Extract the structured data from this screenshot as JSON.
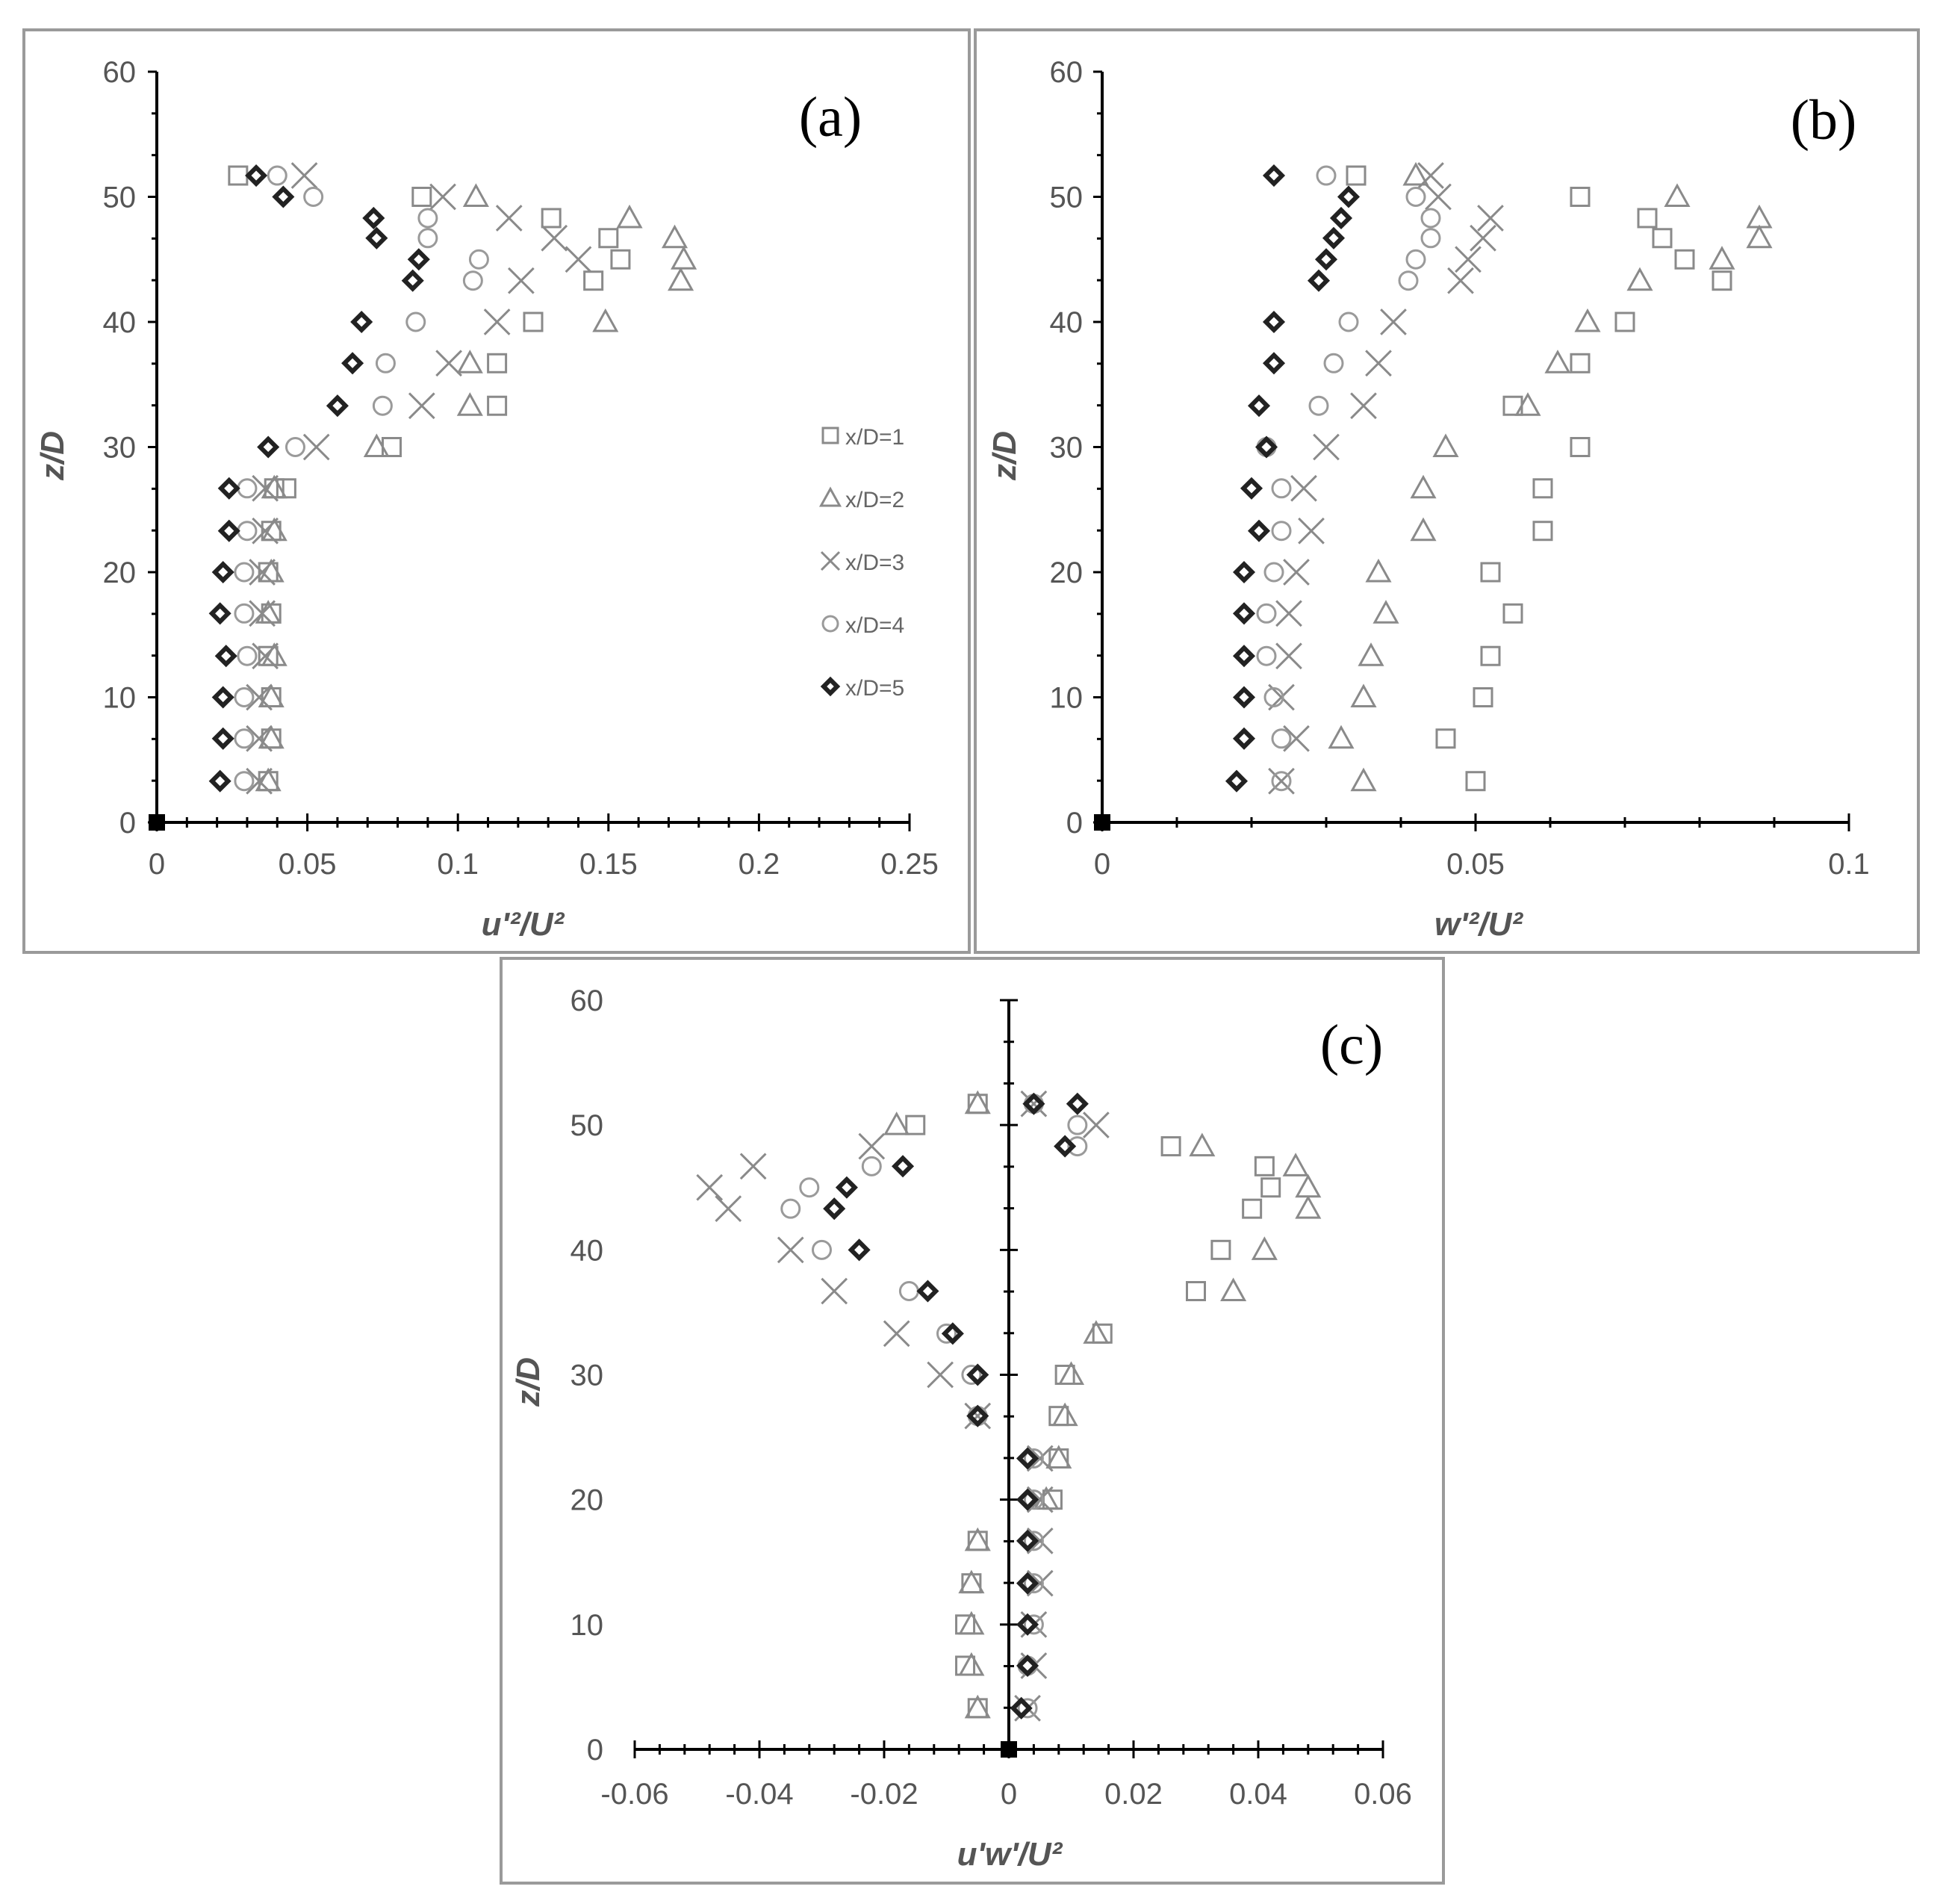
{
  "colors": {
    "frame": "#9a9a9a",
    "axis": "#000000",
    "text": "#555555",
    "series": [
      "#8a8a8a",
      "#8a8a8a",
      "#8a8a8a",
      "#9a9a9a",
      "#222222"
    ]
  },
  "legend": {
    "placement": "right-middle of panel (a)",
    "entries": [
      {
        "label": "x/D=1",
        "marker": "square-icon"
      },
      {
        "label": "x/D=2",
        "marker": "triangle-icon"
      },
      {
        "label": "x/D=3",
        "marker": "cross-icon"
      },
      {
        "label": "x/D=4",
        "marker": "circle-icon"
      },
      {
        "label": "x/D=5",
        "marker": "diamond-icon"
      }
    ]
  },
  "chart_data": [
    {
      "type": "scatter",
      "panel_label": "(a)",
      "xlabel": "u'²/U²",
      "ylabel": "z/D",
      "xlim": [
        0,
        0.25
      ],
      "ylim": [
        0,
        60
      ],
      "x_ticks": [
        "0",
        "0.05",
        "0.1",
        "0.15",
        "0.2",
        "0.25"
      ],
      "y_ticks": [
        "0",
        "10",
        "20",
        "30",
        "40",
        "50",
        "60"
      ],
      "grid": false,
      "series": [
        {
          "name": "x/D=1",
          "marker": "square",
          "x": [
            0.037,
            0.038,
            0.038,
            0.037,
            0.038,
            0.037,
            0.038,
            0.039,
            0.043,
            0.078,
            0.113,
            0.113,
            0.125,
            0.145,
            0.154,
            0.15,
            0.131,
            0.088,
            0.027
          ],
          "y": [
            3.3,
            6.7,
            10,
            13.3,
            16.7,
            20,
            23.3,
            26.7,
            26.7,
            30,
            33.3,
            36.7,
            40,
            43.3,
            45,
            46.7,
            48.3,
            50,
            51.7
          ]
        },
        {
          "name": "x/D=2",
          "marker": "triangle",
          "x": [
            0.037,
            0.038,
            0.038,
            0.039,
            0.037,
            0.038,
            0.039,
            0.039,
            0.073,
            0.104,
            0.104,
            0.149,
            0.174,
            0.175,
            0.172,
            0.157,
            0.106
          ],
          "y": [
            3.3,
            6.7,
            10,
            13.3,
            16.7,
            20,
            23.3,
            26.7,
            30,
            33.3,
            36.7,
            40,
            43.3,
            45,
            46.7,
            48.3,
            50
          ]
        },
        {
          "name": "x/D=3",
          "marker": "cross",
          "x": [
            0.034,
            0.034,
            0.034,
            0.036,
            0.035,
            0.035,
            0.036,
            0.036,
            0.053,
            0.088,
            0.097,
            0.113,
            0.121,
            0.14,
            0.132,
            0.117,
            0.095,
            0.049
          ],
          "y": [
            3.3,
            6.7,
            10,
            13.3,
            16.7,
            20,
            23.3,
            26.7,
            30,
            33.3,
            36.7,
            40,
            43.3,
            45,
            46.7,
            48.3,
            50,
            51.7
          ]
        },
        {
          "name": "x/D=4",
          "marker": "circle",
          "x": [
            0.029,
            0.029,
            0.029,
            0.03,
            0.029,
            0.029,
            0.03,
            0.03,
            0.046,
            0.075,
            0.076,
            0.086,
            0.105,
            0.107,
            0.09,
            0.09,
            0.052,
            0.04
          ],
          "y": [
            3.3,
            6.7,
            10,
            13.3,
            16.7,
            20,
            23.3,
            26.7,
            30,
            33.3,
            36.7,
            40,
            43.3,
            45,
            46.7,
            48.3,
            50,
            51.7
          ]
        },
        {
          "name": "x/D=5",
          "marker": "diamond",
          "x": [
            0.021,
            0.022,
            0.022,
            0.023,
            0.021,
            0.022,
            0.024,
            0.024,
            0.037,
            0.06,
            0.065,
            0.068,
            0.085,
            0.087,
            0.073,
            0.072,
            0.042,
            0.033
          ],
          "y": [
            3.3,
            6.7,
            10,
            13.3,
            16.7,
            20,
            23.3,
            26.7,
            30,
            33.3,
            36.7,
            40,
            43.3,
            45,
            46.7,
            48.3,
            50,
            51.7
          ]
        }
      ]
    },
    {
      "type": "scatter",
      "panel_label": "(b)",
      "xlabel": "w'²/U²",
      "ylabel": "z/D",
      "xlim": [
        0,
        0.1
      ],
      "ylim": [
        0,
        60
      ],
      "x_ticks": [
        "0",
        "0.05",
        "0.1"
      ],
      "y_ticks": [
        "0",
        "10",
        "20",
        "30",
        "40",
        "50",
        "60"
      ],
      "grid": false,
      "series": [
        {
          "name": "x/D=1",
          "marker": "square",
          "x": [
            0.05,
            0.046,
            0.051,
            0.052,
            0.055,
            0.052,
            0.059,
            0.059,
            0.064,
            0.055,
            0.064,
            0.07,
            0.083,
            0.078,
            0.075,
            0.073,
            0.064,
            0.034
          ],
          "y": [
            3.3,
            6.7,
            10,
            13.3,
            16.7,
            20,
            23.3,
            26.7,
            30,
            33.3,
            36.7,
            40,
            43.3,
            45,
            46.7,
            48.3,
            50,
            51.7
          ]
        },
        {
          "name": "x/D=2",
          "marker": "triangle",
          "x": [
            0.035,
            0.032,
            0.035,
            0.036,
            0.038,
            0.037,
            0.043,
            0.043,
            0.046,
            0.057,
            0.061,
            0.065,
            0.072,
            0.083,
            0.088,
            0.088,
            0.077,
            0.042
          ],
          "y": [
            3.3,
            6.7,
            10,
            13.3,
            16.7,
            20,
            23.3,
            26.7,
            30,
            33.3,
            36.7,
            40,
            43.3,
            45,
            46.7,
            48.3,
            50,
            51.7
          ]
        },
        {
          "name": "x/D=3",
          "marker": "cross",
          "x": [
            0.024,
            0.026,
            0.024,
            0.025,
            0.025,
            0.026,
            0.028,
            0.027,
            0.03,
            0.035,
            0.037,
            0.039,
            0.048,
            0.049,
            0.051,
            0.052,
            0.045,
            0.044
          ],
          "y": [
            3.3,
            6.7,
            10,
            13.3,
            16.7,
            20,
            23.3,
            26.7,
            30,
            33.3,
            36.7,
            40,
            43.3,
            45,
            46.7,
            48.3,
            50,
            51.7
          ]
        },
        {
          "name": "x/D=4",
          "marker": "circle",
          "x": [
            0.024,
            0.024,
            0.023,
            0.022,
            0.022,
            0.023,
            0.024,
            0.024,
            0.022,
            0.029,
            0.031,
            0.033,
            0.041,
            0.042,
            0.044,
            0.044,
            0.042,
            0.03
          ],
          "y": [
            3.3,
            6.7,
            10,
            13.3,
            16.7,
            20,
            23.3,
            26.7,
            30,
            33.3,
            36.7,
            40,
            43.3,
            45,
            46.7,
            48.3,
            50,
            51.7
          ]
        },
        {
          "name": "x/D=5",
          "marker": "diamond",
          "x": [
            0.018,
            0.019,
            0.019,
            0.019,
            0.019,
            0.019,
            0.021,
            0.02,
            0.022,
            0.021,
            0.023,
            0.023,
            0.029,
            0.03,
            0.031,
            0.032,
            0.033,
            0.023
          ],
          "y": [
            3.3,
            6.7,
            10,
            13.3,
            16.7,
            20,
            23.3,
            26.7,
            30,
            33.3,
            36.7,
            40,
            43.3,
            45,
            46.7,
            48.3,
            50,
            51.7
          ]
        }
      ]
    },
    {
      "type": "scatter",
      "panel_label": "(c)",
      "xlabel": "u'w'/U²",
      "ylabel": "z/D",
      "xlim": [
        -0.06,
        0.06
      ],
      "ylim": [
        0,
        60
      ],
      "x_ticks": [
        "-0.06",
        "-0.04",
        "-0.02",
        "0",
        "0.02",
        "0.04",
        "0.06"
      ],
      "y_ticks": [
        "0",
        "10",
        "20",
        "30",
        "40",
        "50",
        "60"
      ],
      "grid": false,
      "series": [
        {
          "name": "x/D=1",
          "marker": "square",
          "x": [
            -0.005,
            -0.007,
            -0.007,
            -0.006,
            -0.005,
            0.007,
            0.008,
            0.008,
            0.009,
            0.015,
            0.03,
            0.034,
            0.039,
            0.042,
            0.041,
            0.026,
            -0.015,
            -0.005
          ],
          "y": [
            3.3,
            6.7,
            10,
            13.3,
            16.7,
            20,
            23.3,
            26.7,
            30,
            33.3,
            36.7,
            40,
            43.3,
            45,
            46.7,
            48.3,
            50,
            51.7
          ]
        },
        {
          "name": "x/D=2",
          "marker": "triangle",
          "x": [
            -0.005,
            -0.006,
            -0.006,
            -0.006,
            -0.005,
            0.006,
            0.008,
            0.009,
            0.01,
            0.014,
            0.036,
            0.041,
            0.048,
            0.048,
            0.046,
            0.031,
            -0.018,
            -0.005
          ],
          "y": [
            3.3,
            6.7,
            10,
            13.3,
            16.7,
            20,
            23.3,
            26.7,
            30,
            33.3,
            36.7,
            40,
            43.3,
            45,
            46.7,
            48.3,
            50,
            51.7
          ]
        },
        {
          "name": "x/D=3",
          "marker": "cross",
          "x": [
            0.003,
            0.004,
            0.004,
            0.005,
            0.005,
            0.005,
            0.005,
            -0.005,
            -0.011,
            -0.018,
            -0.028,
            -0.035,
            -0.045,
            -0.048,
            -0.041,
            -0.022,
            0.014,
            0.004
          ],
          "y": [
            3.3,
            6.7,
            10,
            13.3,
            16.7,
            20,
            23.3,
            26.7,
            30,
            33.3,
            36.7,
            40,
            43.3,
            45,
            46.7,
            48.3,
            50,
            51.7
          ]
        },
        {
          "name": "x/D=4",
          "marker": "circle",
          "x": [
            0.003,
            0.003,
            0.004,
            0.004,
            0.004,
            0.004,
            0.004,
            -0.005,
            -0.006,
            -0.01,
            -0.016,
            -0.03,
            -0.035,
            -0.032,
            -0.022,
            0.011,
            0.011,
            0.004
          ],
          "y": [
            3.3,
            6.7,
            10,
            13.3,
            16.7,
            20,
            23.3,
            26.7,
            30,
            33.3,
            36.7,
            40,
            43.3,
            45,
            46.7,
            48.3,
            50,
            51.7
          ]
        },
        {
          "name": "x/D=5",
          "marker": "diamond",
          "x": [
            0.002,
            0.003,
            0.003,
            0.003,
            0.003,
            0.003,
            0.003,
            -0.005,
            -0.005,
            -0.009,
            -0.013,
            -0.024,
            -0.028,
            -0.026,
            -0.017,
            0.009,
            0.011,
            0.004
          ],
          "y": [
            3.3,
            6.7,
            10,
            13.3,
            16.7,
            20,
            23.3,
            26.7,
            30,
            33.3,
            36.7,
            40,
            43.3,
            45,
            46.7,
            48.3,
            51.7,
            51.7
          ]
        }
      ]
    }
  ]
}
